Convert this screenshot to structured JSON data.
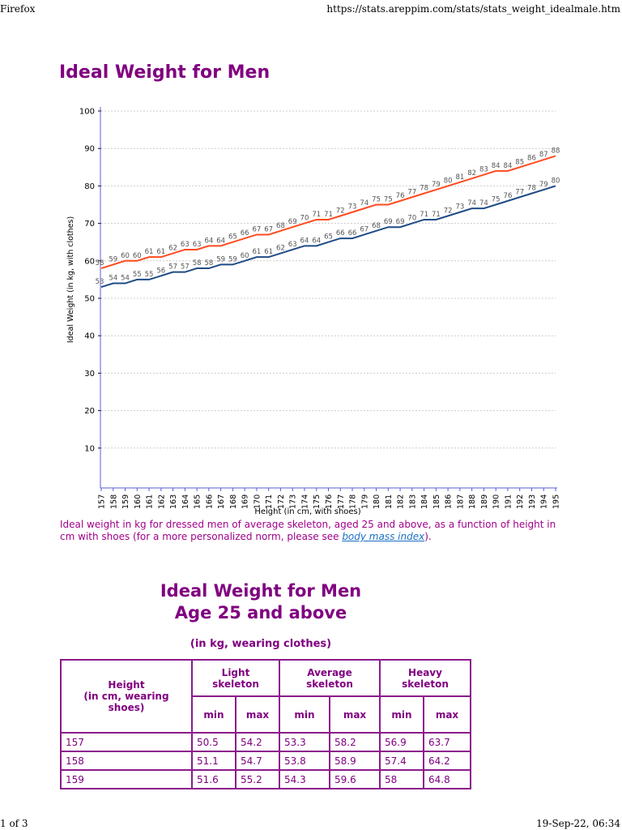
{
  "browser": {
    "app": "Firefox",
    "url": "https://stats.areppim.com/stats/stats_weight_idealmale.htm",
    "page": "1 of 3",
    "datetime": "19-Sep-22, 06:34"
  },
  "title": "Ideal Weight for Men",
  "chart_data": {
    "type": "line",
    "xlabel": "Height (in cm, with shoes)",
    "ylabel": "Ideal Weight (in kg, with clothes)",
    "x": [
      157,
      158,
      159,
      160,
      161,
      162,
      163,
      164,
      165,
      166,
      167,
      168,
      169,
      170,
      171,
      172,
      173,
      174,
      175,
      176,
      177,
      178,
      179,
      180,
      181,
      182,
      183,
      184,
      185,
      186,
      187,
      188,
      189,
      190,
      191,
      192,
      193,
      194,
      195
    ],
    "ylim": [
      0,
      100
    ],
    "yticks": [
      10,
      20,
      30,
      40,
      50,
      60,
      70,
      80,
      90,
      100
    ],
    "grid": true,
    "series": [
      {
        "color": "#ff4b1f",
        "values": [
          58,
          59,
          60,
          60,
          61,
          61,
          62,
          63,
          63,
          64,
          64,
          65,
          66,
          67,
          67,
          68,
          69,
          70,
          71,
          71,
          72,
          73,
          74,
          75,
          75,
          76,
          77,
          78,
          79,
          80,
          81,
          82,
          83,
          84,
          84,
          85,
          86,
          87,
          88
        ]
      },
      {
        "color": "#1f4b86",
        "values": [
          53,
          54,
          54,
          55,
          55,
          56,
          57,
          57,
          58,
          58,
          59,
          59,
          60,
          61,
          61,
          62,
          63,
          64,
          64,
          65,
          66,
          66,
          67,
          68,
          69,
          69,
          70,
          71,
          71,
          72,
          73,
          74,
          74,
          75,
          76,
          77,
          78,
          79,
          80
        ]
      }
    ]
  },
  "caption": {
    "text": "Ideal weight in kg for dressed men of average skeleton, aged 25 and above, as a function of height in cm with shoes (for a more personalized norm, please see ",
    "link": "body mass index",
    "end": ")."
  },
  "table_title": {
    "line1": "Ideal Weight for Men",
    "line2": "Age 25 and above"
  },
  "table_subtitle": "(in kg, wearing clothes)",
  "table": {
    "height_header": "Height",
    "height_sub": "(in cm, wearing shoes)",
    "groups": [
      "Light skeleton",
      "Average skeleton",
      "Heavy skeleton"
    ],
    "sub": [
      "min",
      "max",
      "min",
      "max",
      "min",
      "max"
    ],
    "rows": [
      [
        "157",
        "50.5",
        "54.2",
        "53.3",
        "58.2",
        "56.9",
        "63.7"
      ],
      [
        "158",
        "51.1",
        "54.7",
        "53.8",
        "58.9",
        "57.4",
        "64.2"
      ],
      [
        "159",
        "51.6",
        "55.2",
        "54.3",
        "59.6",
        "58",
        "64.8"
      ]
    ]
  }
}
